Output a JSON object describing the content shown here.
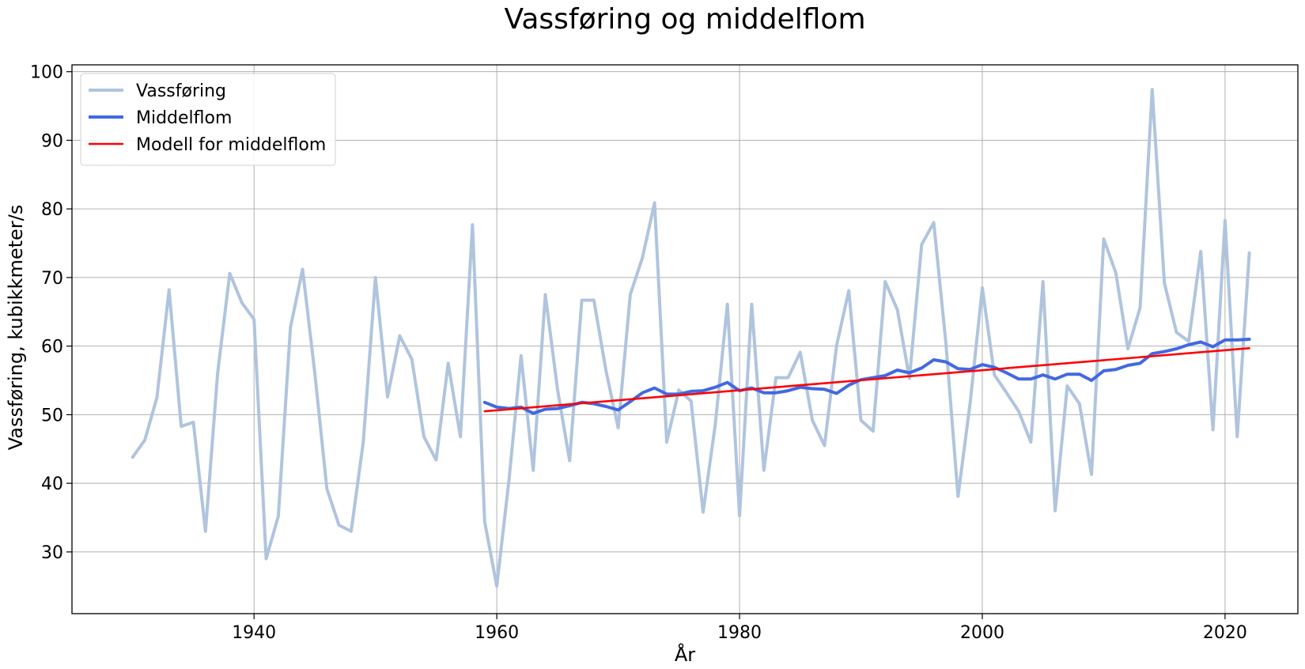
{
  "chart_data": {
    "type": "line",
    "title": "Vassføring og middelflom",
    "xlabel": "År",
    "ylabel": "Vassføring, kubikkmeter/s",
    "xlim": [
      1925,
      2026
    ],
    "ylim": [
      21,
      101
    ],
    "xticks": [
      1940,
      1960,
      1980,
      2000,
      2020
    ],
    "yticks": [
      30,
      40,
      50,
      60,
      70,
      80,
      90,
      100
    ],
    "grid": true,
    "legend_position": "top-left",
    "series": [
      {
        "name": "Vassføring",
        "color": "#b0c4de",
        "x": [
          1930,
          1931,
          1932,
          1933,
          1934,
          1935,
          1936,
          1937,
          1938,
          1939,
          1940,
          1941,
          1942,
          1943,
          1944,
          1945,
          1946,
          1947,
          1948,
          1949,
          1950,
          1951,
          1952,
          1953,
          1954,
          1955,
          1956,
          1957,
          1958,
          1959,
          1960,
          1961,
          1962,
          1963,
          1964,
          1965,
          1966,
          1967,
          1968,
          1969,
          1970,
          1971,
          1972,
          1973,
          1974,
          1975,
          1976,
          1977,
          1978,
          1979,
          1980,
          1981,
          1982,
          1983,
          1984,
          1985,
          1986,
          1987,
          1988,
          1989,
          1990,
          1991,
          1992,
          1993,
          1994,
          1995,
          1996,
          1997,
          1998,
          1999,
          2000,
          2001,
          2002,
          2003,
          2004,
          2005,
          2006,
          2007,
          2008,
          2009,
          2010,
          2011,
          2012,
          2013,
          2014,
          2015,
          2016,
          2017,
          2018,
          2019,
          2020,
          2021,
          2022
        ],
        "y": [
          43.8,
          46.3,
          52.5,
          68.2,
          48.3,
          48.9,
          33.0,
          56.1,
          70.6,
          66.3,
          63.9,
          29.0,
          35.2,
          62.7,
          71.2,
          56.2,
          39.2,
          33.9,
          33.0,
          46.0,
          70.0,
          52.6,
          61.5,
          58.1,
          46.8,
          43.4,
          57.5,
          46.8,
          77.7,
          34.4,
          25.0,
          40.4,
          58.6,
          41.9,
          67.5,
          53.7,
          43.3,
          66.7,
          66.7,
          56.4,
          48.1,
          67.5,
          72.9,
          80.9,
          46.0,
          53.6,
          52.0,
          35.8,
          48.6,
          66.1,
          35.3,
          66.1,
          41.9,
          55.4,
          55.4,
          59.1,
          49.2,
          45.5,
          60.1,
          68.1,
          49.2,
          47.6,
          69.4,
          65.3,
          55.3,
          74.8,
          78.0,
          60.4,
          38.1,
          51.7,
          68.5,
          55.8,
          53.2,
          50.5,
          46.0,
          69.4,
          36.0,
          54.2,
          51.6,
          41.3,
          75.6,
          70.7,
          59.6,
          65.6,
          97.4,
          69.2,
          62.0,
          60.7,
          73.8,
          47.8,
          78.3,
          46.8,
          73.6
        ]
      },
      {
        "name": "Middelflom",
        "color": "#4169e1",
        "x": [
          1959,
          1960,
          1961,
          1962,
          1963,
          1964,
          1965,
          1966,
          1967,
          1968,
          1969,
          1970,
          1971,
          1972,
          1973,
          1974,
          1975,
          1976,
          1977,
          1978,
          1979,
          1980,
          1981,
          1982,
          1983,
          1984,
          1985,
          1986,
          1987,
          1988,
          1989,
          1990,
          1991,
          1992,
          1993,
          1994,
          1995,
          1996,
          1997,
          1998,
          1999,
          2000,
          2001,
          2002,
          2003,
          2004,
          2005,
          2006,
          2007,
          2008,
          2009,
          2010,
          2011,
          2012,
          2013,
          2014,
          2015,
          2016,
          2017,
          2018,
          2019,
          2020,
          2021,
          2022
        ],
        "y": [
          51.8,
          51.1,
          50.9,
          51.1,
          50.2,
          50.8,
          50.9,
          51.3,
          51.8,
          51.6,
          51.2,
          50.7,
          51.9,
          53.2,
          53.9,
          53.0,
          53.0,
          53.4,
          53.5,
          54.0,
          54.7,
          53.5,
          53.9,
          53.2,
          53.2,
          53.5,
          54.0,
          53.8,
          53.7,
          53.1,
          54.3,
          55.1,
          55.4,
          55.7,
          56.5,
          56.1,
          56.8,
          58.0,
          57.7,
          56.7,
          56.6,
          57.3,
          56.9,
          56.1,
          55.2,
          55.2,
          55.8,
          55.2,
          55.9,
          55.9,
          55.0,
          56.4,
          56.6,
          57.2,
          57.5,
          58.9,
          59.2,
          59.6,
          60.2,
          60.6,
          59.9,
          60.9,
          60.9,
          61.0
        ]
      },
      {
        "name": "Modell for middelflom",
        "color": "#ff0000",
        "x": [
          1959,
          2022
        ],
        "y": [
          50.5,
          59.7
        ]
      }
    ]
  }
}
